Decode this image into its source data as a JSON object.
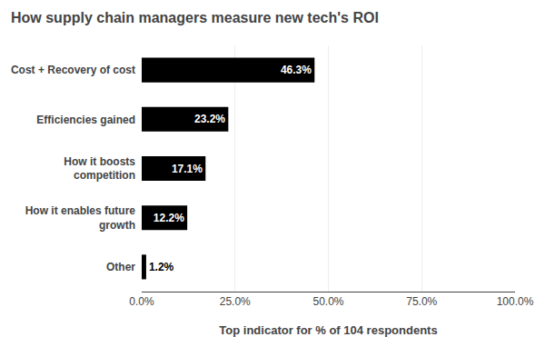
{
  "chart_data": {
    "type": "bar",
    "orientation": "horizontal",
    "title": "How supply chain managers measure new tech's ROI",
    "xlabel": "Top indicator for % of 104 respondents",
    "categories": [
      "Cost + Recovery of cost",
      "Efficiencies gained",
      "How it boosts\ncompetition",
      "How it enables future\ngrowth",
      "Other"
    ],
    "values": [
      46.3,
      23.2,
      17.1,
      12.2,
      1.2
    ],
    "value_labels": [
      "46.3%",
      "23.2%",
      "17.1%",
      "12.2%",
      "1.2%"
    ],
    "data_labels": true,
    "color": "#000000",
    "xlim": [
      0,
      100
    ],
    "xticks": [
      {
        "value": 0,
        "label": "0.0%"
      },
      {
        "value": 25,
        "label": "25.0%"
      },
      {
        "value": 50,
        "label": "50.0%"
      },
      {
        "value": 75,
        "label": "75.0%"
      },
      {
        "value": 100,
        "label": "100.0%"
      }
    ],
    "grid": true
  }
}
